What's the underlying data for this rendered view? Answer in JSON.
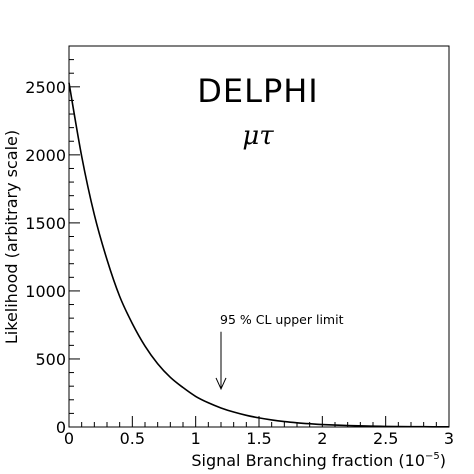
{
  "chart_data": {
    "type": "line",
    "title": "DELPHI",
    "subtitle": "μτ",
    "xlabel_main": "Signal Branching fraction (10",
    "xlabel_exp": "−5",
    "xlabel_close": ")",
    "ylabel": "Likelihood (arbitrary scale)",
    "xlim": [
      0,
      3
    ],
    "ylim": [
      0,
      2800
    ],
    "xticks": [
      0,
      0.5,
      1,
      1.5,
      2,
      2.5,
      3
    ],
    "xtick_labels": [
      "0",
      "0.5",
      "1",
      "1.5",
      "2",
      "2.5",
      "3"
    ],
    "yticks": [
      0,
      500,
      1000,
      1500,
      2000,
      2500
    ],
    "ytick_labels": [
      "0",
      "500",
      "1000",
      "1500",
      "2000",
      "2500"
    ],
    "series": [
      {
        "x": [
          0,
          0.1,
          0.2,
          0.3,
          0.4,
          0.5,
          0.6,
          0.7,
          0.8,
          0.9,
          1.0,
          1.1,
          1.2,
          1.3,
          1.4,
          1.5,
          1.6,
          1.7,
          1.8,
          1.9,
          2.0,
          2.2,
          2.4,
          2.6,
          2.8,
          3.0
        ],
        "y": [
          2530,
          1990,
          1560,
          1230,
          960,
          760,
          595,
          465,
          365,
          290,
          225,
          178,
          140,
          110,
          86,
          67,
          52,
          40,
          31,
          24,
          18,
          11,
          6,
          3,
          2,
          1
        ]
      }
    ],
    "annotation": {
      "text": "95 % CL upper limit",
      "x": 1.2,
      "y_arrow_tip": 280,
      "y_arrow_tail": 700
    }
  }
}
